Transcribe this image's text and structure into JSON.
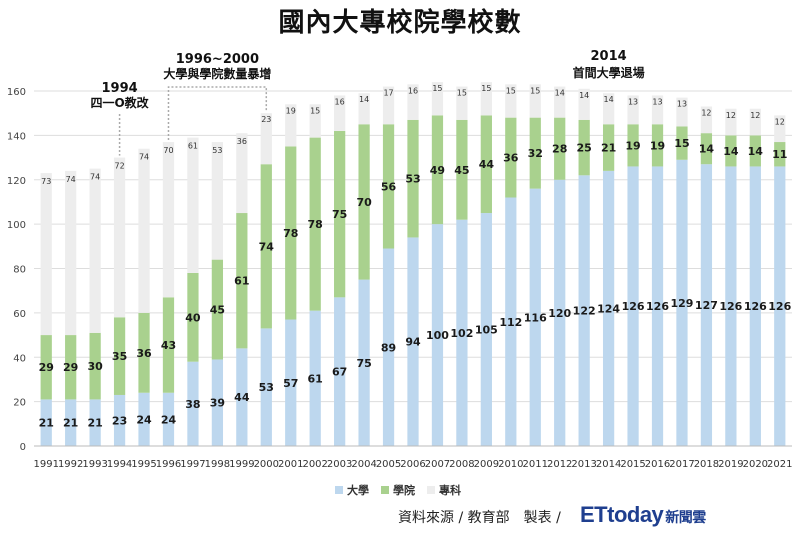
{
  "chart_data": {
    "type": "bar",
    "stacked": true,
    "title": "國內大專校院學校數",
    "categories": [
      "1991",
      "1992",
      "1993",
      "1994",
      "1995",
      "1996",
      "1997",
      "1998",
      "1999",
      "2000",
      "2001",
      "2002",
      "2003",
      "2004",
      "2005",
      "2006",
      "2007",
      "2008",
      "2009",
      "2010",
      "2011",
      "2012",
      "2013",
      "2014",
      "2015",
      "2016",
      "2017",
      "2018",
      "2019",
      "2020",
      "2021"
    ],
    "series": [
      {
        "name": "大學",
        "color": "#bdd7ee",
        "values": [
          21,
          21,
          21,
          23,
          24,
          24,
          38,
          39,
          44,
          53,
          57,
          61,
          67,
          75,
          89,
          94,
          100,
          102,
          105,
          112,
          116,
          120,
          122,
          124,
          126,
          126,
          129,
          127,
          126,
          126,
          126
        ]
      },
      {
        "name": "學院",
        "color": "#a9d18e",
        "values": [
          29,
          29,
          30,
          35,
          36,
          43,
          40,
          45,
          61,
          74,
          78,
          78,
          75,
          70,
          56,
          53,
          49,
          45,
          44,
          36,
          32,
          28,
          25,
          21,
          19,
          19,
          15,
          14,
          14,
          14,
          11
        ]
      },
      {
        "name": "專科",
        "color": "#ededed",
        "values": [
          73,
          74,
          74,
          72,
          74,
          70,
          61,
          53,
          36,
          23,
          19,
          15,
          16,
          14,
          17,
          16,
          15,
          15,
          15,
          15,
          15,
          14,
          14,
          14,
          13,
          13,
          13,
          12,
          12,
          12,
          12
        ]
      }
    ],
    "ylim": [
      0,
      160
    ],
    "yticks": [
      0,
      20,
      40,
      60,
      80,
      100,
      120,
      140,
      160
    ],
    "grid": true,
    "legend": "bottom",
    "annotations": [
      {
        "year": "1994",
        "line1": "1994",
        "line2": "四一O教改"
      },
      {
        "years": [
          "1996",
          "2000"
        ],
        "line1": "1996~2000",
        "line2": "大學與學院數量暴增"
      },
      {
        "year": "2014",
        "line1": "2014",
        "line2": "首間大學退場"
      }
    ]
  },
  "footer": {
    "source": "資料來源 / 教育部　製表 /",
    "brand": "ETtoday",
    "brand_sub": "新聞雲"
  }
}
